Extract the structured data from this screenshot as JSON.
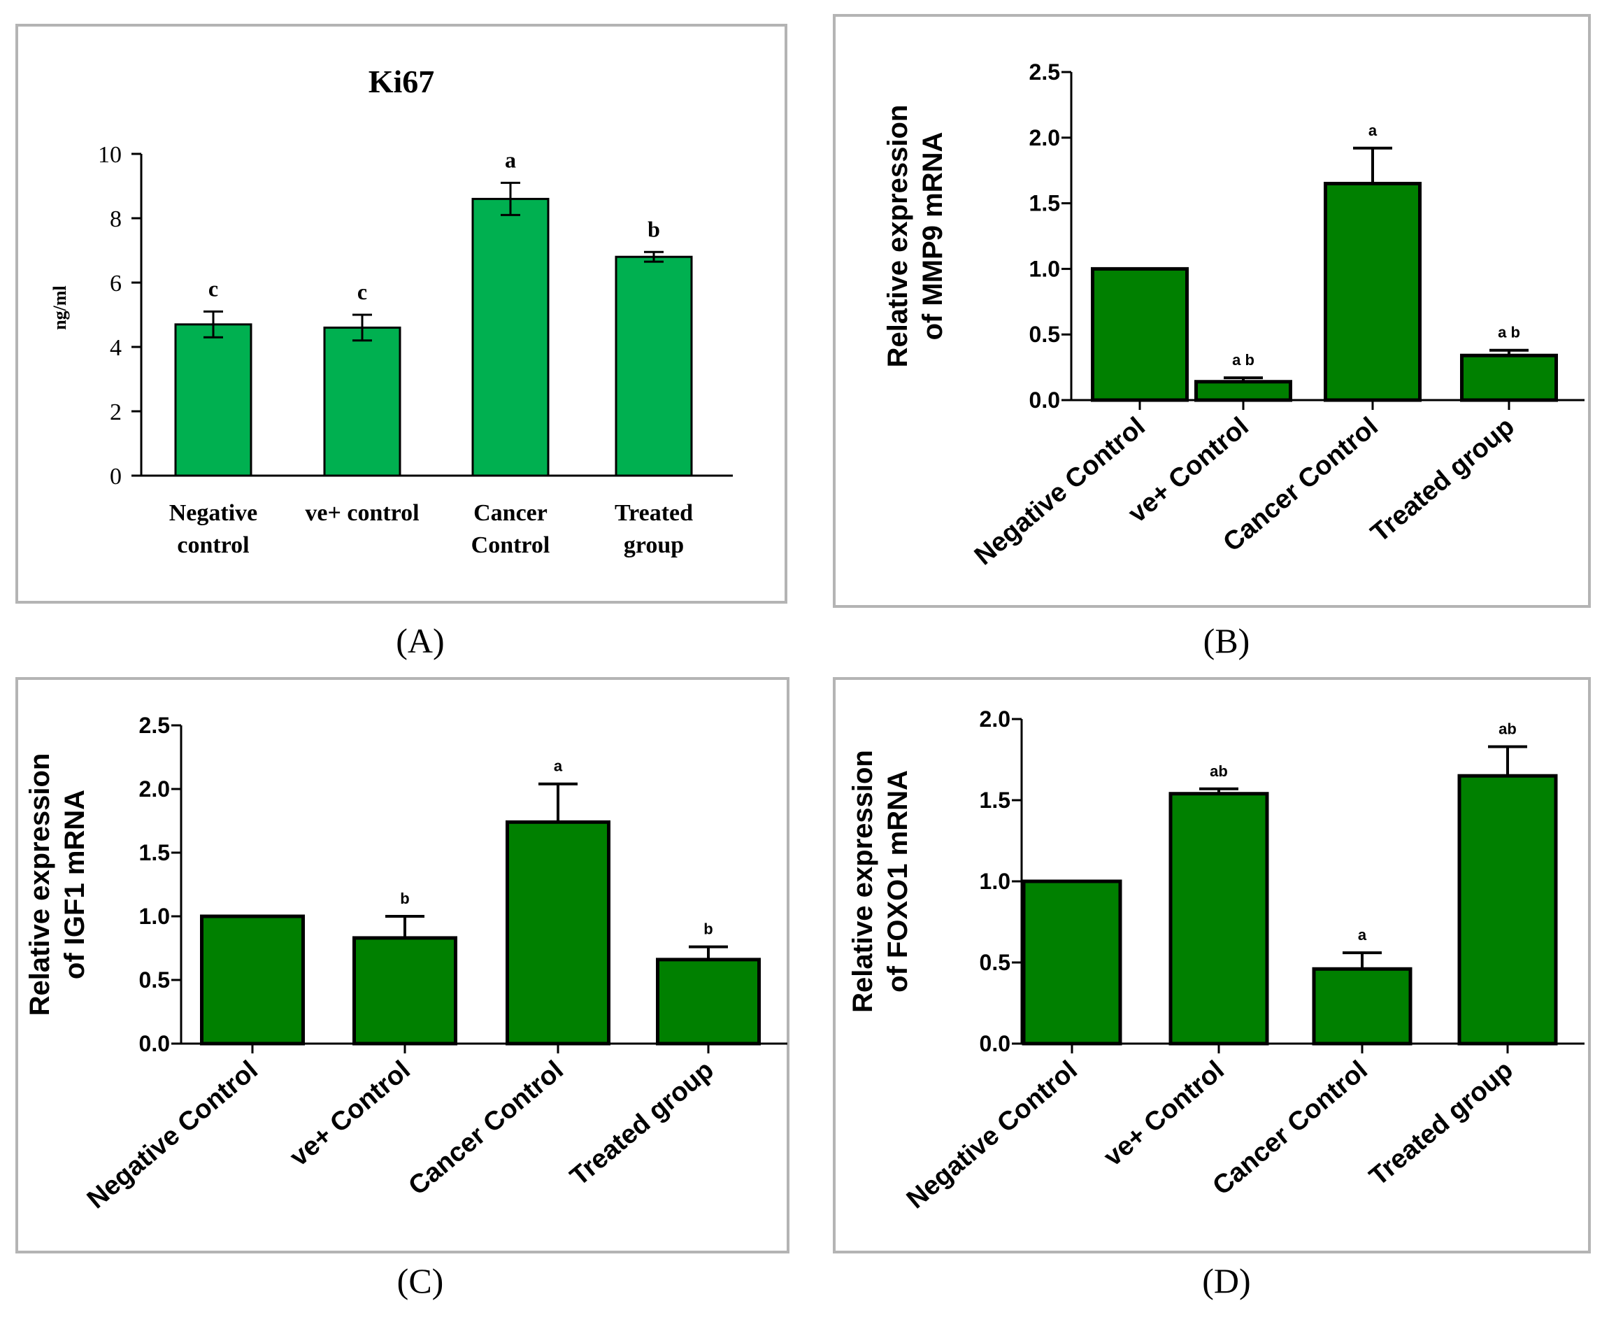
{
  "panel_labels": [
    "(A)",
    "(B)",
    "(C)",
    "(D)"
  ],
  "colors": {
    "bar_a": "#00b050",
    "bar_gp": "#008000",
    "frame": "#b4b4b4",
    "axis": "#000000"
  },
  "chart_data": [
    {
      "panel": "A",
      "type": "bar",
      "title": "Ki67",
      "ylabel": "ng/ml",
      "xlabel": "",
      "ylim": [
        0,
        10
      ],
      "yticks": [
        "0",
        "2",
        "4",
        "6",
        "8",
        "10"
      ],
      "categories": [
        [
          "Negative",
          "control"
        ],
        [
          "ve+ control"
        ],
        [
          "Cancer",
          "Control"
        ],
        [
          "Treated",
          "group"
        ]
      ],
      "values": [
        4.7,
        4.6,
        8.6,
        6.8
      ],
      "errors": [
        0.4,
        0.4,
        0.5,
        0.15
      ],
      "letters": [
        "c",
        "c",
        "a",
        "b"
      ]
    },
    {
      "panel": "B",
      "type": "bar",
      "ylabel": [
        "Relative expression",
        "of MMP9 mRNA"
      ],
      "xlabel": "",
      "ylim": [
        0,
        2.5
      ],
      "yticks": [
        "0.0",
        "0.5",
        "1.0",
        "1.5",
        "2.0",
        "2.5"
      ],
      "categories": [
        "Negative Control",
        "ve+ Control",
        "Cancer Control",
        "Treated group"
      ],
      "values": [
        1.0,
        0.14,
        1.65,
        0.34
      ],
      "errors": [
        0,
        0.03,
        0.27,
        0.04
      ],
      "letters": [
        "",
        "a b",
        "a",
        "a b"
      ]
    },
    {
      "panel": "C",
      "type": "bar",
      "ylabel": [
        "Relative expression",
        "of IGF1 mRNA"
      ],
      "xlabel": "",
      "ylim": [
        0,
        2.5
      ],
      "yticks": [
        "0.0",
        "0.5",
        "1.0",
        "1.5",
        "2.0",
        "2.5"
      ],
      "categories": [
        "Negative Control",
        "ve+ Control",
        "Cancer Control",
        "Treated group"
      ],
      "values": [
        1.0,
        0.83,
        1.74,
        0.66
      ],
      "errors": [
        0,
        0.17,
        0.3,
        0.1
      ],
      "letters": [
        "",
        "b",
        "a",
        "b"
      ]
    },
    {
      "panel": "D",
      "type": "bar",
      "ylabel": [
        "Relative expression",
        "of FOXO1 mRNA"
      ],
      "xlabel": "",
      "ylim": [
        0,
        2.0
      ],
      "yticks": [
        "0.0",
        "0.5",
        "1.0",
        "1.5",
        "2.0"
      ],
      "categories": [
        "Negative Control",
        "ve+ Control",
        "Cancer Control",
        "Treated group"
      ],
      "values": [
        1.0,
        1.54,
        0.46,
        1.65
      ],
      "errors": [
        0,
        0.03,
        0.1,
        0.18
      ],
      "letters": [
        "",
        "ab",
        "a",
        "ab"
      ]
    }
  ]
}
